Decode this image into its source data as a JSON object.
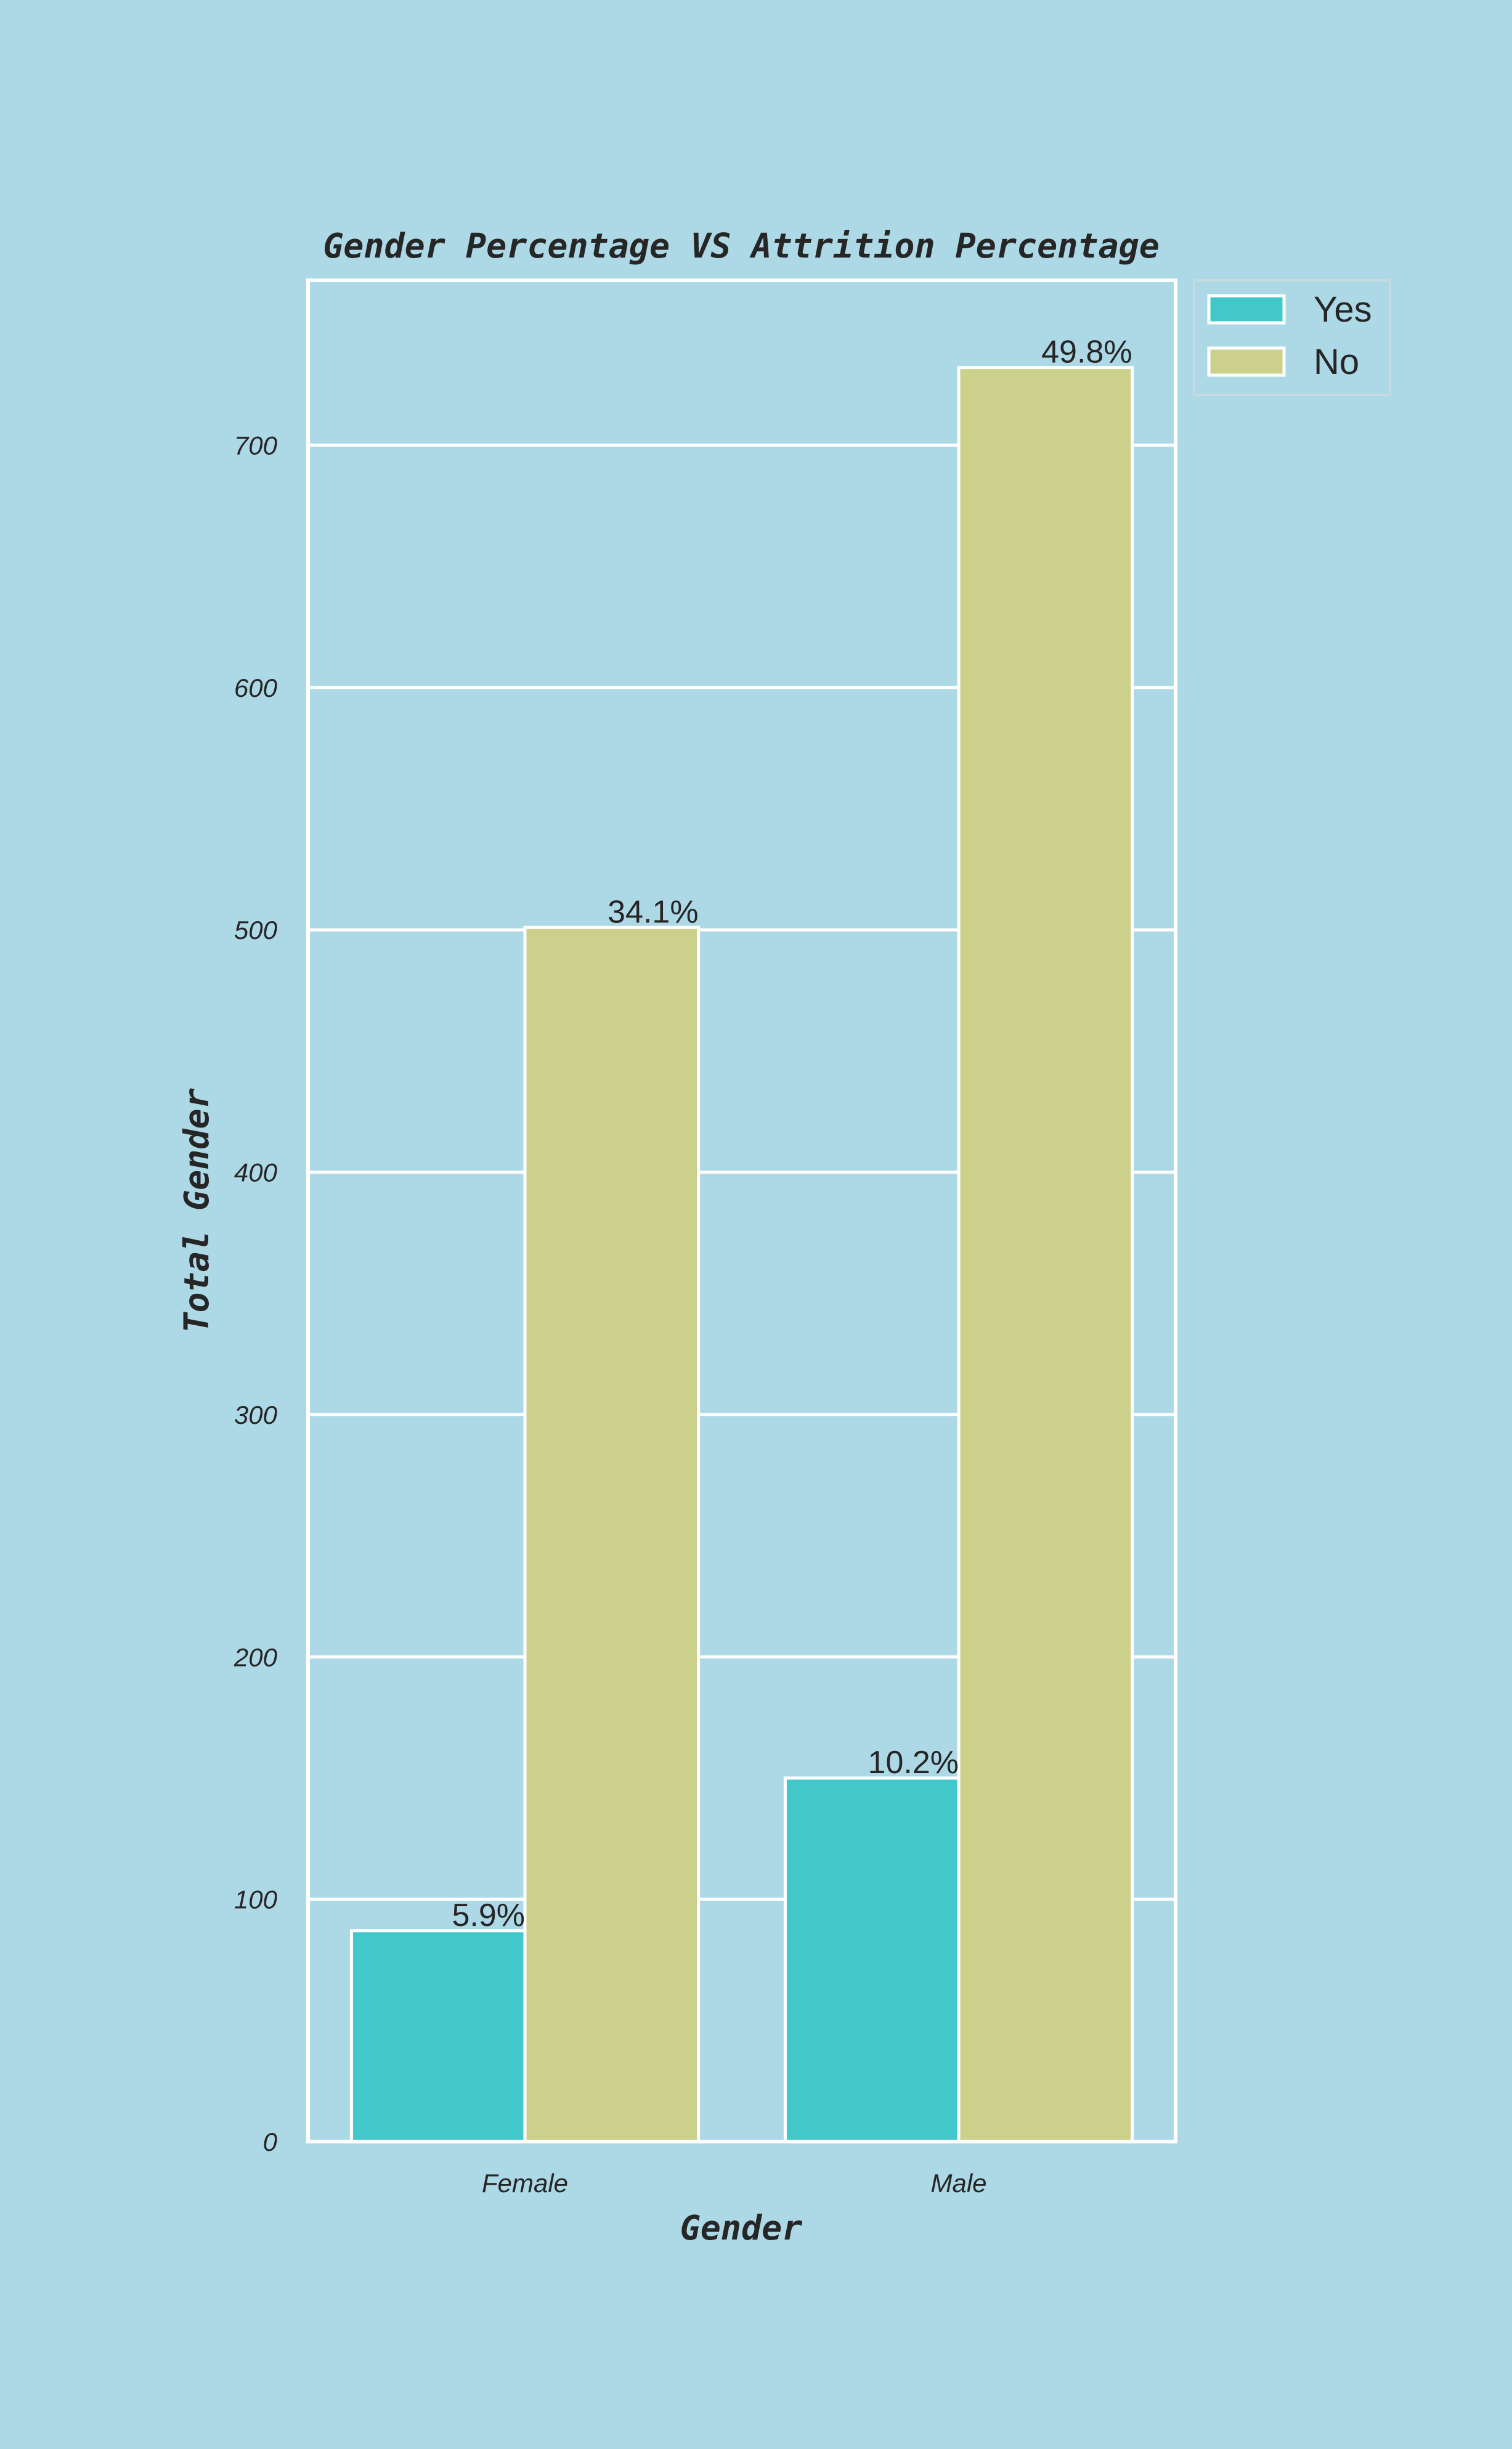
{
  "chart_data": {
    "type": "bar",
    "title": "Gender Percentage VS Attrition Percentage",
    "xlabel": "Gender",
    "ylabel": "Total Gender",
    "categories": [
      "Female",
      "Male"
    ],
    "series": [
      {
        "name": "Yes",
        "values": [
          87,
          150
        ],
        "labels": [
          "5.9%",
          "10.2%"
        ],
        "color": "#42c8c9"
      },
      {
        "name": "No",
        "values": [
          501,
          732
        ],
        "labels": [
          "34.1%",
          "49.8%"
        ],
        "color": "#cbd18b"
      }
    ],
    "ylim": [
      0,
      768
    ],
    "yticks": [
      0,
      100,
      200,
      300,
      400,
      500,
      600,
      700
    ],
    "grid": true,
    "legend_position": "top-right-outside",
    "background_color": "#add8e6",
    "grid_color": "#ffffff"
  }
}
